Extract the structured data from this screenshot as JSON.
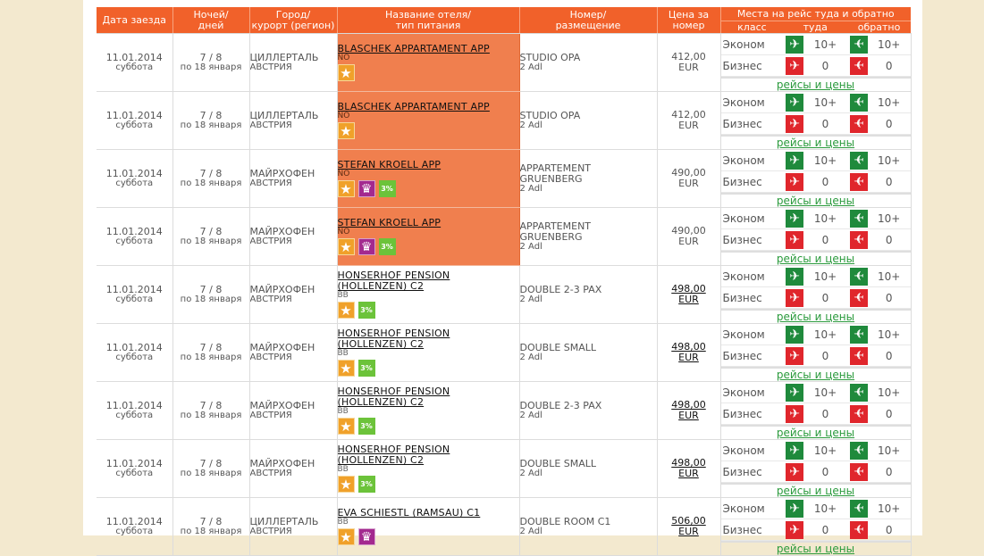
{
  "headers": {
    "date": "Дата заезда",
    "nights": "Ночей/\nдней",
    "city": "Город/\nкурорт (регион)",
    "hotel": "Название отеля/\nтип питания",
    "room": "Номер/\nразмещение",
    "price": "Цена за\nномер",
    "seats": "Места на рейс туда и обратно",
    "seats_class": "класс",
    "seats_there": "туда",
    "seats_back": "обратно"
  },
  "labels": {
    "econom": "Эконом",
    "business": "Бизнес",
    "flights_link": "рейсы и цены"
  },
  "colors": {
    "header_bg": "#f1612a",
    "highlight_row": "#f07f4e",
    "plane_green": "#1f8a3c",
    "plane_red": "#e0262c",
    "link_green": "#2a9a3c"
  },
  "rows": [
    {
      "date": "11.01.2014",
      "weekday": "суббота",
      "nights": "7 / 8",
      "until": "по 18 января",
      "city": "ЦИЛЛЕРТАЛЬ",
      "country": "АВСТРИЯ",
      "hotel": "BLASCHEK APPARTAMENT APP",
      "meal": "NO",
      "badges": [
        "star"
      ],
      "highlight": true,
      "room": "STUDIO OPA",
      "accommodation": "2 Adl",
      "price": "412,00",
      "currency": "EUR",
      "price_link": false,
      "econom_there": "10+",
      "econom_back": "10+",
      "business_there": "0",
      "business_back": "0"
    },
    {
      "date": "11.01.2014",
      "weekday": "суббота",
      "nights": "7 / 8",
      "until": "по 18 января",
      "city": "ЦИЛЛЕРТАЛЬ",
      "country": "АВСТРИЯ",
      "hotel": "BLASCHEK APPARTAMENT APP",
      "meal": "NO",
      "badges": [
        "star"
      ],
      "highlight": true,
      "room": "STUDIO OPA",
      "accommodation": "2 Adl",
      "price": "412,00",
      "currency": "EUR",
      "price_link": false,
      "econom_there": "10+",
      "econom_back": "10+",
      "business_there": "0",
      "business_back": "0"
    },
    {
      "date": "11.01.2014",
      "weekday": "суббота",
      "nights": "7 / 8",
      "until": "по 18 января",
      "city": "МАЙРХОФЕН",
      "country": "АВСТРИЯ",
      "hotel": "STEFAN KROELL APP",
      "meal": "NO",
      "badges": [
        "star",
        "crown",
        "pct"
      ],
      "highlight": true,
      "room": "APPARTEMENT GRUENBERG",
      "accommodation": "2 Adl",
      "price": "490,00",
      "currency": "EUR",
      "price_link": false,
      "econom_there": "10+",
      "econom_back": "10+",
      "business_there": "0",
      "business_back": "0"
    },
    {
      "date": "11.01.2014",
      "weekday": "суббота",
      "nights": "7 / 8",
      "until": "по 18 января",
      "city": "МАЙРХОФЕН",
      "country": "АВСТРИЯ",
      "hotel": "STEFAN KROELL APP",
      "meal": "NO",
      "badges": [
        "star",
        "crown",
        "pct"
      ],
      "highlight": true,
      "room": "APPARTEMENT GRUENBERG",
      "accommodation": "2 Adl",
      "price": "490,00",
      "currency": "EUR",
      "price_link": false,
      "econom_there": "10+",
      "econom_back": "10+",
      "business_there": "0",
      "business_back": "0"
    },
    {
      "date": "11.01.2014",
      "weekday": "суббота",
      "nights": "7 / 8",
      "until": "по 18 января",
      "city": "МАЙРХОФЕН",
      "country": "АВСТРИЯ",
      "hotel": "HONSERHOF PENSION (HOLLENZEN) C2",
      "meal": "BB",
      "badges": [
        "star",
        "pct"
      ],
      "highlight": false,
      "room": "DOUBLE 2-3 PAX",
      "accommodation": "2 Adl",
      "price": "498,00",
      "currency": "EUR",
      "price_link": true,
      "econom_there": "10+",
      "econom_back": "10+",
      "business_there": "0",
      "business_back": "0"
    },
    {
      "date": "11.01.2014",
      "weekday": "суббота",
      "nights": "7 / 8",
      "until": "по 18 января",
      "city": "МАЙРХОФЕН",
      "country": "АВСТРИЯ",
      "hotel": "HONSERHOF PENSION (HOLLENZEN) C2",
      "meal": "BB",
      "badges": [
        "star",
        "pct"
      ],
      "highlight": false,
      "room": "DOUBLE SMALL",
      "accommodation": "2 Adl",
      "price": "498,00",
      "currency": "EUR",
      "price_link": true,
      "econom_there": "10+",
      "econom_back": "10+",
      "business_there": "0",
      "business_back": "0"
    },
    {
      "date": "11.01.2014",
      "weekday": "суббота",
      "nights": "7 / 8",
      "until": "по 18 января",
      "city": "МАЙРХОФЕН",
      "country": "АВСТРИЯ",
      "hotel": "HONSERHOF PENSION (HOLLENZEN) C2",
      "meal": "BB",
      "badges": [
        "star",
        "pct"
      ],
      "highlight": false,
      "room": "DOUBLE 2-3 PAX",
      "accommodation": "2 Adl",
      "price": "498,00",
      "currency": "EUR",
      "price_link": true,
      "econom_there": "10+",
      "econom_back": "10+",
      "business_there": "0",
      "business_back": "0"
    },
    {
      "date": "11.01.2014",
      "weekday": "суббота",
      "nights": "7 / 8",
      "until": "по 18 января",
      "city": "МАЙРХОФЕН",
      "country": "АВСТРИЯ",
      "hotel": "HONSERHOF PENSION (HOLLENZEN) C2",
      "meal": "BB",
      "badges": [
        "star",
        "pct"
      ],
      "highlight": false,
      "room": "DOUBLE SMALL",
      "accommodation": "2 Adl",
      "price": "498,00",
      "currency": "EUR",
      "price_link": true,
      "econom_there": "10+",
      "econom_back": "10+",
      "business_there": "0",
      "business_back": "0"
    },
    {
      "date": "11.01.2014",
      "weekday": "суббота",
      "nights": "7 / 8",
      "until": "по 18 января",
      "city": "ЦИЛЛЕРТАЛЬ",
      "country": "АВСТРИЯ",
      "hotel": "EVA SCHIESTL (RAMSAU) C1",
      "meal": "BB",
      "badges": [
        "star",
        "crown"
      ],
      "highlight": false,
      "room": "DOUBLE ROOM C1",
      "accommodation": "2 Adl",
      "price": "506,00",
      "currency": "EUR",
      "price_link": true,
      "econom_there": "10+",
      "econom_back": "10+",
      "business_there": "0",
      "business_back": "0"
    }
  ]
}
